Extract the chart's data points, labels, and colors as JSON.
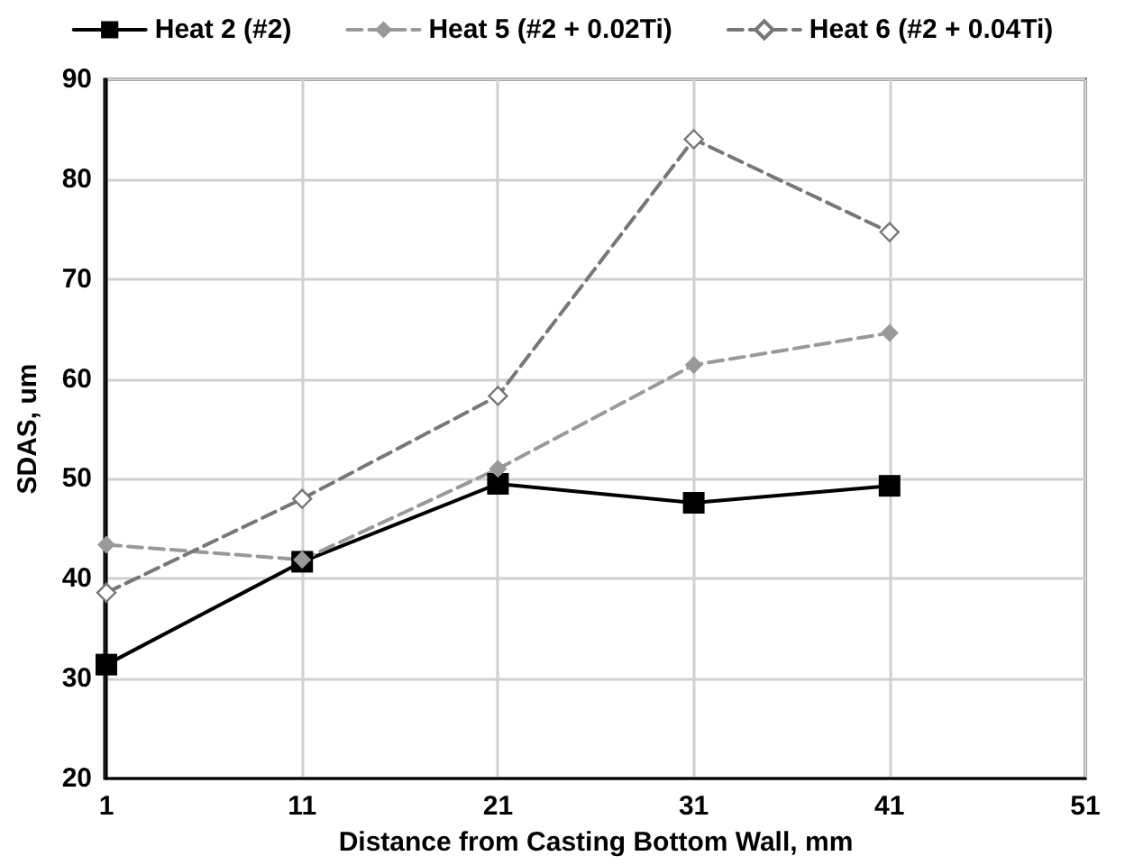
{
  "chart_data": {
    "type": "line",
    "xlabel": "Distance from Casting Bottom Wall, mm",
    "ylabel": "SDAS, um",
    "x": [
      1,
      11,
      21,
      31,
      41
    ],
    "series": [
      {
        "name": "Heat 2 (#2)",
        "color": "#000000",
        "marker": "square",
        "line_style": "solid",
        "values": [
          31.4,
          41.7,
          49.5,
          47.6,
          49.3
        ]
      },
      {
        "name": "Heat 5 (#2 + 0.02Ti)",
        "color": "#999999",
        "marker": "diamond",
        "line_style": "dashed",
        "values": [
          43.4,
          41.9,
          51.0,
          61.4,
          64.6
        ]
      },
      {
        "name": "Heat 6 (#2 + 0.04Ti)",
        "color": "#777777",
        "marker": "diamond-open",
        "line_style": "dashed",
        "values": [
          38.6,
          48.0,
          58.3,
          84.0,
          74.7
        ]
      }
    ],
    "xlim": [
      1,
      51
    ],
    "xticks": [
      1,
      11,
      21,
      31,
      41,
      51
    ],
    "ylim": [
      20,
      90
    ],
    "yticks": [
      20,
      30,
      40,
      50,
      60,
      70,
      80,
      90
    ],
    "grid": true,
    "legend": "top"
  }
}
